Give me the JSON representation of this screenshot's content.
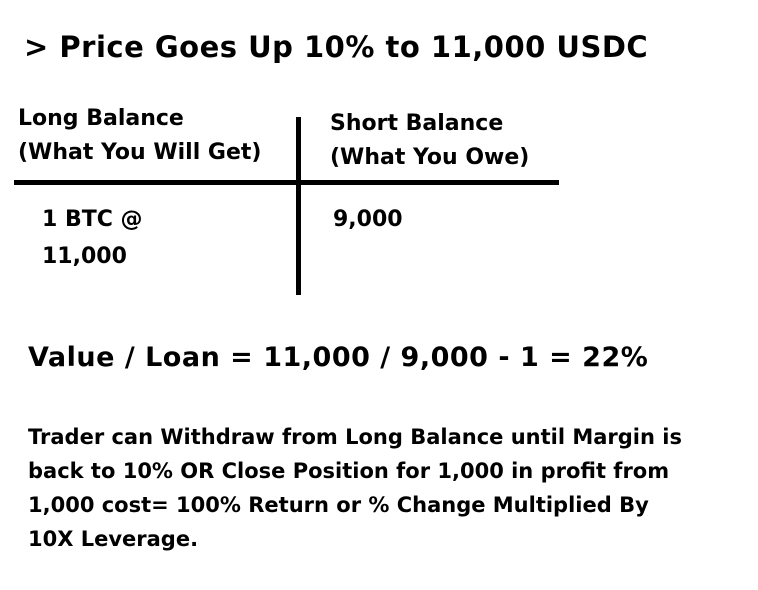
{
  "title": "> Price Goes Up 10% to 11,000 USDC",
  "table": {
    "left_column": {
      "header_line1": "Long Balance",
      "header_line2": "(What You Will Get)",
      "value_line1": "1 BTC @",
      "value_line2": "11,000"
    },
    "right_column": {
      "header_line1": "Short Balance",
      "header_line2": "(What You Owe)",
      "value": "9,000"
    }
  },
  "formula": "Value / Loan = 11,000 / 9,000 - 1 = 22%",
  "note": {
    "lines": [
      "Trader can Withdraw from Long Balance until Margin is",
      "back to 10% OR Close Position for 1,000 in profit from",
      "1,000 cost= 100% Return or % Change Multiplied By",
      "10X Leverage."
    ]
  },
  "colors": {
    "text": "#000000",
    "background": "#ffffff"
  }
}
